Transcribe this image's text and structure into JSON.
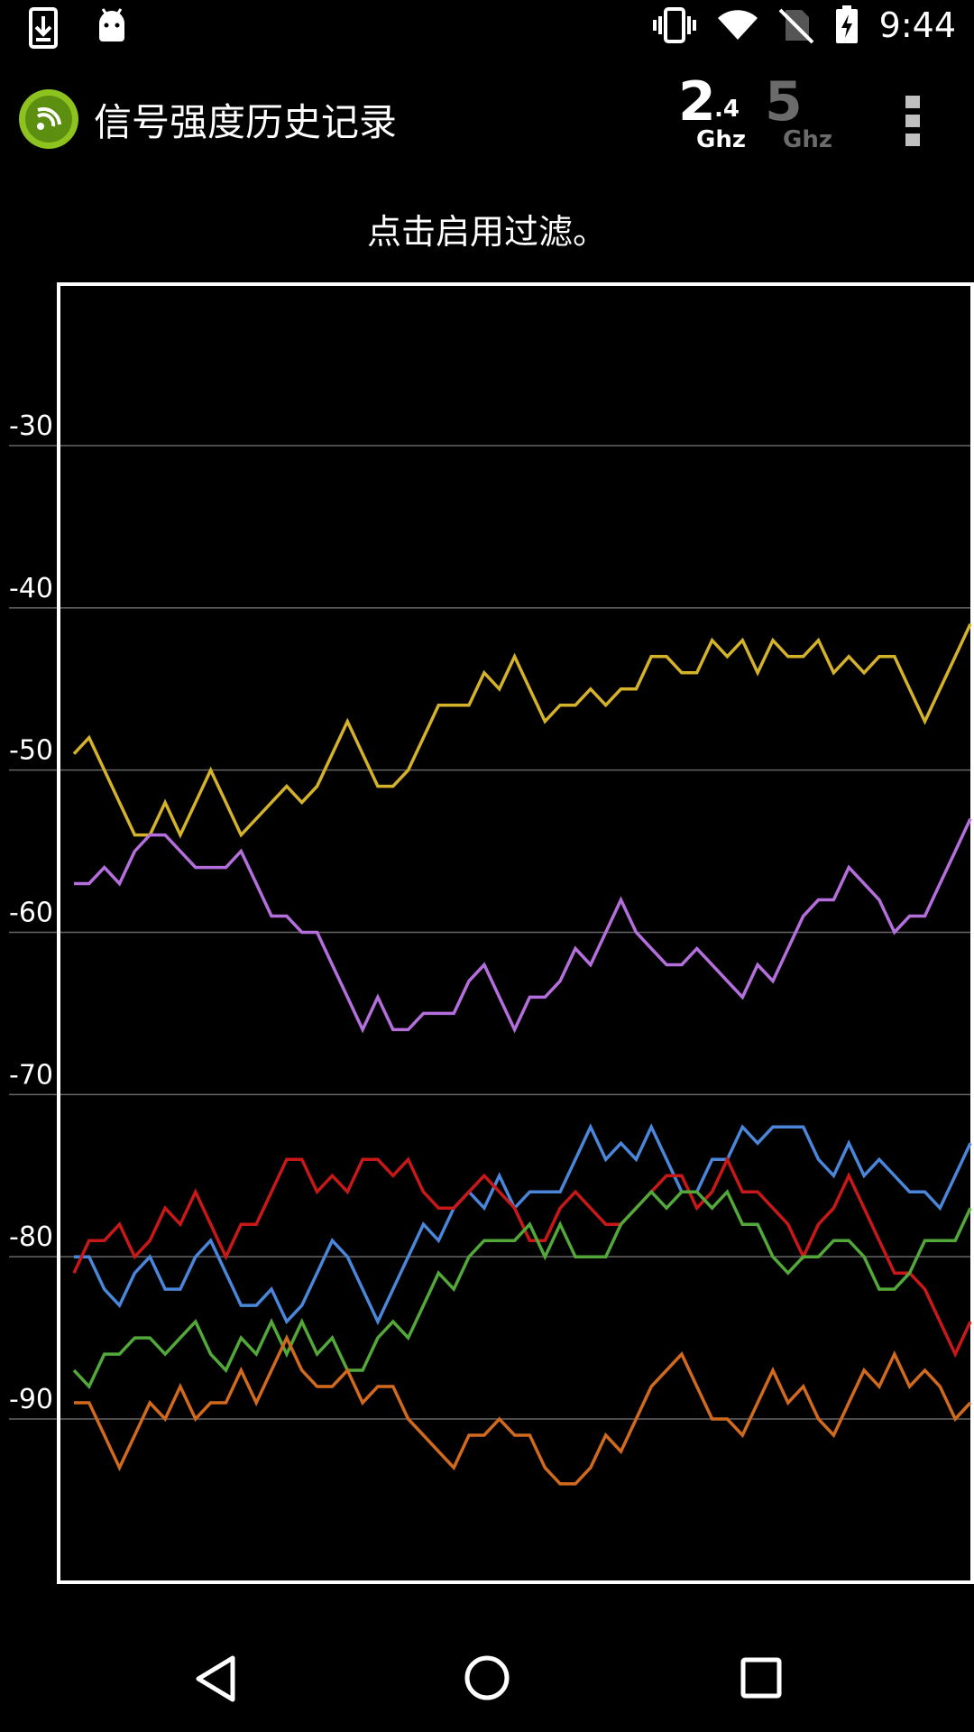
{
  "status_bar": {
    "time": "9:44",
    "icons": [
      "download-icon",
      "android-icon",
      "vibrate-icon",
      "wifi-icon",
      "no-sim-icon",
      "battery-charging-icon"
    ]
  },
  "app_bar": {
    "title": "信号强度历史记录",
    "band_24": {
      "big": "2",
      "small": ".4",
      "unit": "Ghz"
    },
    "band_5": {
      "big": "5",
      "unit": "Ghz"
    },
    "menu_icon": "more-vert-icon"
  },
  "hint_text": "点击启用过滤。",
  "colors": {
    "background": "#000000",
    "frame": "#ffffff",
    "grid": "#666666",
    "band_active": "#ffffff",
    "band_inactive": "#6b6b6b"
  },
  "chart_data": {
    "type": "line",
    "ylabels": [
      "-30",
      "-40",
      "-50",
      "-60",
      "-70",
      "-80",
      "-90"
    ],
    "ylim": [
      -100,
      -22
    ],
    "grid": true,
    "series": [
      {
        "color": "#d4b22a",
        "values": [
          -49,
          -48,
          -50,
          -52,
          -54,
          -54,
          -52,
          -54,
          -52,
          -50,
          -52,
          -54,
          -53,
          -52,
          -51,
          -52,
          -51,
          -49,
          -47,
          -49,
          -51,
          -51,
          -50,
          -48,
          -46,
          -46,
          -46,
          -44,
          -45,
          -43,
          -45,
          -47,
          -46,
          -46,
          -45,
          -46,
          -45,
          -45,
          -43,
          -43,
          -44,
          -44,
          -42,
          -43,
          -42,
          -44,
          -42,
          -43,
          -43,
          -42,
          -44,
          -43,
          -44,
          -43,
          -43,
          -45,
          -47,
          -45,
          -43,
          -41
        ]
      },
      {
        "color": "#b46fdc",
        "values": [
          -57,
          -57,
          -56,
          -57,
          -55,
          -54,
          -54,
          -55,
          -56,
          -56,
          -56,
          -55,
          -57,
          -59,
          -59,
          -60,
          -60,
          -62,
          -64,
          -66,
          -64,
          -66,
          -66,
          -65,
          -65,
          -65,
          -63,
          -62,
          -64,
          -66,
          -64,
          -64,
          -63,
          -61,
          -62,
          -60,
          -58,
          -60,
          -61,
          -62,
          -62,
          -61,
          -62,
          -63,
          -64,
          -62,
          -63,
          -61,
          -59,
          -58,
          -58,
          -56,
          -57,
          -58,
          -60,
          -59,
          -59,
          -57,
          -55,
          -53
        ]
      },
      {
        "color": "#4a86d9",
        "values": [
          -80,
          -80,
          -82,
          -83,
          -81,
          -80,
          -82,
          -82,
          -80,
          -79,
          -81,
          -83,
          -83,
          -82,
          -84,
          -83,
          -81,
          -79,
          -80,
          -82,
          -84,
          -82,
          -80,
          -78,
          -79,
          -77,
          -76,
          -77,
          -75,
          -77,
          -76,
          -76,
          -76,
          -74,
          -72,
          -74,
          -73,
          -74,
          -72,
          -74,
          -76,
          -76,
          -74,
          -74,
          -72,
          -73,
          -72,
          -72,
          -72,
          -74,
          -75,
          -73,
          -75,
          -74,
          -75,
          -76,
          -76,
          -77,
          -75,
          -73
        ]
      },
      {
        "color": "#c81818",
        "values": [
          -81,
          -79,
          -79,
          -78,
          -80,
          -79,
          -77,
          -78,
          -76,
          -78,
          -80,
          -78,
          -78,
          -76,
          -74,
          -74,
          -76,
          -75,
          -76,
          -74,
          -74,
          -75,
          -74,
          -76,
          -77,
          -77,
          -76,
          -75,
          -76,
          -77,
          -79,
          -79,
          -77,
          -76,
          -77,
          -78,
          -78,
          -77,
          -76,
          -75,
          -75,
          -77,
          -76,
          -74,
          -76,
          -76,
          -77,
          -78,
          -80,
          -78,
          -77,
          -75,
          -77,
          -79,
          -81,
          -81,
          -82,
          -84,
          -86,
          -84
        ]
      },
      {
        "color": "#52a93a",
        "values": [
          -87,
          -88,
          -86,
          -86,
          -85,
          -85,
          -86,
          -85,
          -84,
          -86,
          -87,
          -85,
          -86,
          -84,
          -86,
          -84,
          -86,
          -85,
          -87,
          -87,
          -85,
          -84,
          -85,
          -83,
          -81,
          -82,
          -80,
          -79,
          -79,
          -79,
          -78,
          -80,
          -78,
          -80,
          -80,
          -80,
          -78,
          -77,
          -76,
          -77,
          -76,
          -76,
          -77,
          -76,
          -78,
          -78,
          -80,
          -81,
          -80,
          -80,
          -79,
          -79,
          -80,
          -82,
          -82,
          -81,
          -79,
          -79,
          -79,
          -77
        ]
      },
      {
        "color": "#d26a1e",
        "values": [
          -89,
          -89,
          -91,
          -93,
          -91,
          -89,
          -90,
          -88,
          -90,
          -89,
          -89,
          -87,
          -89,
          -87,
          -85,
          -87,
          -88,
          -88,
          -87,
          -89,
          -88,
          -88,
          -90,
          -91,
          -92,
          -93,
          -91,
          -91,
          -90,
          -91,
          -91,
          -93,
          -94,
          -94,
          -93,
          -91,
          -92,
          -90,
          -88,
          -87,
          -86,
          -88,
          -90,
          -90,
          -91,
          -89,
          -87,
          -89,
          -88,
          -90,
          -91,
          -89,
          -87,
          -88,
          -86,
          -88,
          -87,
          -88,
          -90,
          -89
        ]
      }
    ]
  }
}
